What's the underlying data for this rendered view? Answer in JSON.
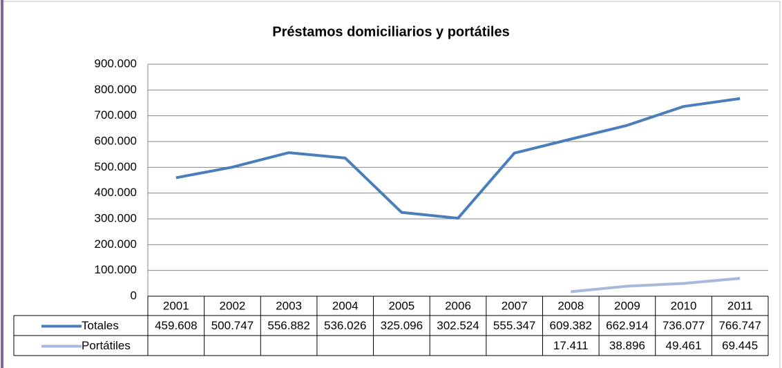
{
  "chart_data": {
    "type": "line",
    "title": "Préstamos domiciliarios y portátiles",
    "categories": [
      "2001",
      "2002",
      "2003",
      "2004",
      "2005",
      "2006",
      "2007",
      "2008",
      "2009",
      "2010",
      "2011"
    ],
    "series": [
      {
        "name": "Totales",
        "color": "#4a7ebb",
        "values": [
          459608,
          500747,
          556882,
          536026,
          325096,
          302524,
          555347,
          609382,
          662914,
          736077,
          766747
        ],
        "value_labels": [
          "459.608",
          "500.747",
          "556.882",
          "536.026",
          "325.096",
          "302.524",
          "555.347",
          "609.382",
          "662.914",
          "736.077",
          "766.747"
        ]
      },
      {
        "name": "Portátiles",
        "color": "#a7b9db",
        "values": [
          null,
          null,
          null,
          null,
          null,
          null,
          null,
          17411,
          38896,
          49461,
          69445
        ],
        "value_labels": [
          null,
          null,
          null,
          null,
          null,
          null,
          null,
          "17.411",
          "38.896",
          "49.461",
          "69.445"
        ]
      }
    ],
    "ylim": [
      0,
      900000
    ],
    "yticks": [
      0,
      {
        "value": 100000,
        "label": "100.000"
      },
      {
        "value": 200000,
        "label": "200.000"
      },
      {
        "value": 300000,
        "label": "300.000"
      },
      {
        "value": 400000,
        "label": "400.000"
      },
      {
        "value": 500000,
        "label": "500.000"
      },
      {
        "value": 600000,
        "label": "600.000"
      },
      {
        "value": 700000,
        "label": "700.000"
      },
      {
        "value": 800000,
        "label": "800.000"
      },
      {
        "value": 900000,
        "label": "900.000"
      }
    ],
    "grid": true
  }
}
